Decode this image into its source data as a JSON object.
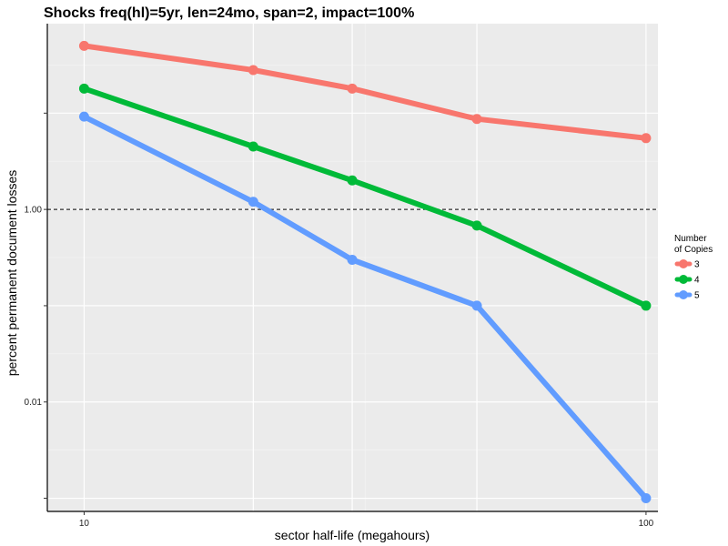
{
  "chart_data": {
    "type": "line",
    "title": "Shocks freq(hl)=5yr, len=24mo, span=2, impact=100%",
    "xlabel": "sector half-life (megahours)",
    "ylabel": "percent permanent document losses",
    "x_scale": "log",
    "y_scale": "log",
    "xlim": [
      8.6,
      105
    ],
    "ylim": [
      0.00073,
      85
    ],
    "x_tick_labels": [
      {
        "value": 10,
        "label": "10"
      },
      {
        "value": 100,
        "label": "100"
      }
    ],
    "y_tick_labels": [
      {
        "value": 1,
        "label": "1.00"
      },
      {
        "value": 0.01,
        "label": "0.01"
      }
    ],
    "reference_line": {
      "y": 1,
      "style": "dashed"
    },
    "x": [
      10,
      20,
      30,
      50,
      100
    ],
    "series": [
      {
        "name": "3",
        "color": "#F8766D",
        "values": [
          50,
          28,
          18,
          8.7,
          5.5
        ]
      },
      {
        "name": "4",
        "color": "#00BA38",
        "values": [
          18,
          4.5,
          2.0,
          0.68,
          0.1
        ]
      },
      {
        "name": "5",
        "color": "#619CFF",
        "values": [
          9.2,
          1.2,
          0.3,
          0.1,
          0.001
        ]
      }
    ],
    "legend": {
      "title_lines": [
        "Number",
        "of Copies"
      ],
      "placement": "right"
    },
    "grid": true
  }
}
